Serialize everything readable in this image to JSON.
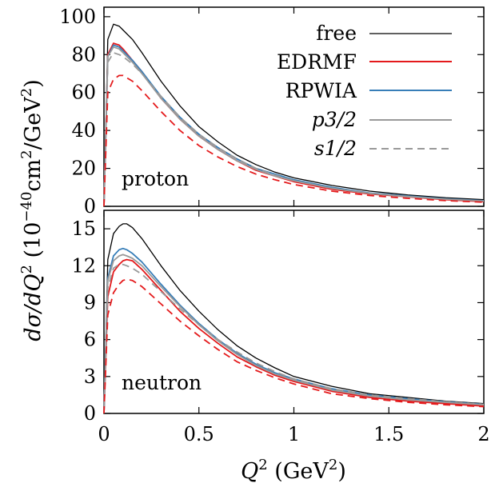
{
  "chart_data": [
    {
      "type": "line",
      "panel_label": "proton",
      "ylim": [
        0,
        105
      ],
      "xlim": [
        0,
        2
      ],
      "yticks": [
        "0",
        "20",
        "40",
        "60",
        "80",
        "100"
      ],
      "ytick_values": [
        0,
        20,
        40,
        60,
        80,
        100
      ],
      "legend": "top-right",
      "series": [
        {
          "name": "free",
          "color": "#000000",
          "dash": "solid",
          "x": [
            0,
            0.02,
            0.05,
            0.08,
            0.1,
            0.15,
            0.2,
            0.3,
            0.4,
            0.5,
            0.6,
            0.7,
            0.8,
            0.9,
            1.0,
            1.2,
            1.4,
            1.6,
            1.8,
            2.0
          ],
          "y": [
            0,
            88,
            96,
            95,
            93,
            88,
            81,
            66,
            53,
            42,
            34,
            27,
            22,
            18,
            15,
            11,
            8,
            6,
            4.5,
            3.5
          ]
        },
        {
          "name": "EDRMF",
          "color": "#e41a1c",
          "dash": "solid",
          "x": [
            0,
            0.02,
            0.05,
            0.08,
            0.1,
            0.15,
            0.2,
            0.3,
            0.4,
            0.5,
            0.6,
            0.7,
            0.8,
            0.9,
            1.0,
            1.2,
            1.4,
            1.6,
            1.8,
            2.0
          ],
          "y": [
            0,
            80,
            86,
            85,
            83,
            77,
            71,
            57,
            46,
            37,
            30,
            24,
            19,
            16,
            13,
            9,
            6.5,
            5,
            3.5,
            2.5
          ]
        },
        {
          "name": "RPWIA",
          "color": "#377eb8",
          "dash": "solid",
          "x": [
            0,
            0.02,
            0.05,
            0.08,
            0.1,
            0.15,
            0.2,
            0.3,
            0.4,
            0.5,
            0.6,
            0.7,
            0.8,
            0.9,
            1.0,
            1.2,
            1.4,
            1.6,
            1.8,
            2.0
          ],
          "y": [
            0,
            79,
            85,
            84,
            82,
            77,
            71,
            58,
            47,
            38,
            31,
            25,
            20,
            17,
            14,
            10,
            7,
            5.5,
            4,
            3
          ]
        },
        {
          "name": "p3/2",
          "color": "#999999",
          "dash": "solid",
          "x": [
            0,
            0.02,
            0.05,
            0.08,
            0.1,
            0.15,
            0.2,
            0.3,
            0.4,
            0.5,
            0.6,
            0.7,
            0.8,
            0.9,
            1.0,
            1.2,
            1.4,
            1.6,
            1.8,
            2.0
          ],
          "y": [
            0,
            79,
            84,
            83,
            81,
            76,
            70,
            57,
            46,
            37,
            30,
            24,
            19.5,
            16,
            13.5,
            9.5,
            6.8,
            5.2,
            3.8,
            2.8
          ]
        },
        {
          "name": "s1/2",
          "color": "#999999",
          "dash": "dashed",
          "x": [
            0,
            0.02,
            0.05,
            0.08,
            0.1,
            0.15,
            0.2,
            0.3,
            0.4,
            0.5,
            0.6,
            0.7,
            0.8,
            0.9,
            1.0,
            1.2,
            1.4,
            1.6,
            1.8,
            2.0
          ],
          "y": [
            0,
            76,
            81,
            80,
            79,
            75,
            70,
            58,
            47,
            38,
            31,
            25,
            20,
            16.5,
            13.5,
            9.5,
            6.8,
            5,
            3.7,
            2.7
          ]
        },
        {
          "name": "",
          "color": "#e41a1c",
          "dash": "dashed",
          "x": [
            0,
            0.02,
            0.05,
            0.08,
            0.1,
            0.15,
            0.2,
            0.3,
            0.4,
            0.5,
            0.6,
            0.7,
            0.8,
            0.9,
            1.0,
            1.2,
            1.4,
            1.6,
            1.8,
            2.0
          ],
          "y": [
            0,
            60,
            67,
            69,
            69,
            66,
            61,
            50,
            40,
            32,
            26,
            21,
            17,
            14,
            11.5,
            8,
            5.7,
            4.2,
            3,
            2.2
          ]
        }
      ]
    },
    {
      "type": "line",
      "panel_label": "neutron",
      "ylim": [
        0,
        16.5
      ],
      "xlim": [
        0,
        2
      ],
      "yticks": [
        "0",
        "3",
        "6",
        "9",
        "12",
        "15"
      ],
      "ytick_values": [
        0,
        3,
        6,
        9,
        12,
        15
      ],
      "xticks": [
        "0",
        "0.5",
        "1",
        "1.5",
        "2"
      ],
      "xtick_values": [
        0,
        0.5,
        1,
        1.5,
        2
      ],
      "series": [
        {
          "name": "free",
          "color": "#000000",
          "dash": "solid",
          "x": [
            0,
            0.02,
            0.05,
            0.08,
            0.1,
            0.12,
            0.15,
            0.2,
            0.3,
            0.4,
            0.5,
            0.6,
            0.7,
            0.8,
            0.9,
            1.0,
            1.2,
            1.4,
            1.6,
            1.8,
            2.0
          ],
          "y": [
            0,
            12.5,
            14.6,
            15.2,
            15.4,
            15.4,
            15.1,
            14.2,
            12.0,
            10.0,
            8.3,
            6.8,
            5.5,
            4.5,
            3.7,
            3.0,
            2.2,
            1.6,
            1.3,
            1.0,
            0.8
          ]
        },
        {
          "name": "EDRMF",
          "color": "#e41a1c",
          "dash": "solid",
          "x": [
            0,
            0.02,
            0.05,
            0.08,
            0.1,
            0.12,
            0.15,
            0.2,
            0.3,
            0.4,
            0.5,
            0.6,
            0.7,
            0.8,
            0.9,
            1.0,
            1.2,
            1.4,
            1.6,
            1.8,
            2.0
          ],
          "y": [
            0,
            9.5,
            11.5,
            12.1,
            12.4,
            12.5,
            12.4,
            11.7,
            10.0,
            8.3,
            6.9,
            5.7,
            4.6,
            3.8,
            3.1,
            2.6,
            1.8,
            1.3,
            1.0,
            0.8,
            0.6
          ]
        },
        {
          "name": "RPWIA",
          "color": "#377eb8",
          "dash": "solid",
          "x": [
            0,
            0.02,
            0.05,
            0.08,
            0.1,
            0.12,
            0.15,
            0.2,
            0.3,
            0.4,
            0.5,
            0.6,
            0.7,
            0.8,
            0.9,
            1.0,
            1.2,
            1.4,
            1.6,
            1.8,
            2.0
          ],
          "y": [
            0,
            11.0,
            12.8,
            13.3,
            13.4,
            13.3,
            13.0,
            12.3,
            10.5,
            8.8,
            7.3,
            6.0,
            4.9,
            4.0,
            3.3,
            2.8,
            2.0,
            1.5,
            1.2,
            0.95,
            0.75
          ]
        },
        {
          "name": "p3/2",
          "color": "#999999",
          "dash": "solid",
          "x": [
            0,
            0.02,
            0.05,
            0.08,
            0.1,
            0.12,
            0.15,
            0.2,
            0.3,
            0.4,
            0.5,
            0.6,
            0.7,
            0.8,
            0.9,
            1.0,
            1.2,
            1.4,
            1.6,
            1.8,
            2.0
          ],
          "y": [
            0,
            10.8,
            12.4,
            12.8,
            12.9,
            12.8,
            12.6,
            12.0,
            10.3,
            8.7,
            7.2,
            5.9,
            4.8,
            3.9,
            3.2,
            2.7,
            1.9,
            1.4,
            1.1,
            0.9,
            0.7
          ]
        },
        {
          "name": "s1/2",
          "color": "#999999",
          "dash": "dashed",
          "x": [
            0,
            0.02,
            0.05,
            0.08,
            0.1,
            0.12,
            0.15,
            0.2,
            0.3,
            0.4,
            0.5,
            0.6,
            0.7,
            0.8,
            0.9,
            1.0,
            1.2,
            1.4,
            1.6,
            1.8,
            2.0
          ],
          "y": [
            0,
            10.2,
            11.8,
            12.1,
            12.1,
            12.0,
            11.8,
            11.3,
            9.9,
            8.5,
            7.2,
            6.0,
            5.0,
            4.1,
            3.4,
            2.8,
            2.0,
            1.5,
            1.2,
            0.95,
            0.75
          ]
        },
        {
          "name": "",
          "color": "#e41a1c",
          "dash": "dashed",
          "x": [
            0,
            0.02,
            0.05,
            0.08,
            0.1,
            0.12,
            0.15,
            0.2,
            0.3,
            0.4,
            0.5,
            0.6,
            0.7,
            0.8,
            0.9,
            1.0,
            1.2,
            1.4,
            1.6,
            1.8,
            2.0
          ],
          "y": [
            0,
            8.0,
            9.8,
            10.5,
            10.8,
            10.9,
            10.8,
            10.3,
            8.9,
            7.5,
            6.3,
            5.2,
            4.2,
            3.5,
            2.9,
            2.4,
            1.6,
            1.2,
            0.9,
            0.7,
            0.55
          ]
        }
      ]
    }
  ],
  "axes": {
    "xlabel_main": "Q",
    "xlabel_sup": "2",
    "xlabel_unit_pre": " (GeV",
    "xlabel_unit_sup": "2",
    "xlabel_unit_post": ")",
    "ylabel_main": "dσ/dQ",
    "ylabel_sup": "2",
    "ylabel_unit_pre": " (10",
    "ylabel_unit_exp": "−40",
    "ylabel_unit_mid": "cm",
    "ylabel_unit_sup2": "2",
    "ylabel_unit_mid2": "/GeV",
    "ylabel_unit_sup3": "2",
    "ylabel_unit_post": ")"
  },
  "legend_labels": {
    "free": "free",
    "edrmf": "EDRMF",
    "rpwia": "RPWIA",
    "p32": "p3/2",
    "s12": "s1/2"
  }
}
